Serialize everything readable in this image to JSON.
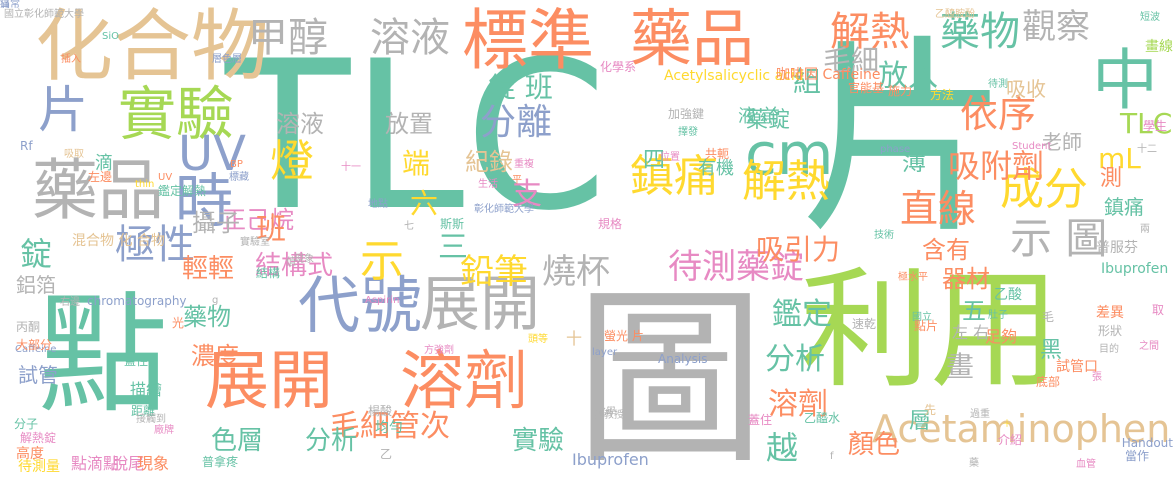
{
  "palette": {
    "green": "#66c2a5",
    "orange": "#fc8d62",
    "blue": "#8da0cb",
    "pink": "#e78ac3",
    "lime": "#a6d854",
    "yellow": "#ffd92f",
    "tan": "#e5c494",
    "gray": "#b3b3b3"
  },
  "words": [
    {
      "text": "TLC",
      "color": "green"
    },
    {
      "text": "片",
      "color": "green"
    },
    {
      "text": "圖",
      "color": "gray"
    },
    {
      "text": "點",
      "color": "green"
    },
    {
      "text": "利用",
      "color": "lime"
    },
    {
      "text": "化合物",
      "color": "tan"
    },
    {
      "text": "標準",
      "color": "orange"
    },
    {
      "text": "藥品",
      "color": "orange"
    },
    {
      "text": "實驗",
      "color": "lime"
    },
    {
      "text": "藥品",
      "color": "gray"
    },
    {
      "text": "展開",
      "color": "orange"
    },
    {
      "text": "溶劑",
      "color": "orange"
    },
    {
      "text": "代號",
      "color": "blue"
    },
    {
      "text": "展開",
      "color": "gray"
    },
    {
      "text": "cm",
      "color": "green"
    },
    {
      "text": "中",
      "color": "green"
    },
    {
      "text": "時",
      "color": "blue"
    },
    {
      "text": "片",
      "color": "blue"
    },
    {
      "text": "甲醇",
      "color": "gray"
    },
    {
      "text": "溶液",
      "color": "gray"
    },
    {
      "text": "解熱",
      "color": "orange"
    },
    {
      "text": "藥物",
      "color": "green"
    },
    {
      "text": "鎮痛",
      "color": "yellow"
    },
    {
      "text": "解熱",
      "color": "yellow"
    },
    {
      "text": "UV",
      "color": "blue"
    },
    {
      "text": "燈",
      "color": "yellow"
    },
    {
      "text": "極性",
      "color": "blue"
    },
    {
      "text": "示",
      "color": "yellow"
    },
    {
      "text": "分離",
      "color": "blue"
    },
    {
      "text": "Acetaminophen",
      "color": "tan"
    },
    {
      "text": "依序",
      "color": "orange"
    },
    {
      "text": "成分",
      "color": "yellow"
    },
    {
      "text": "直線",
      "color": "orange"
    },
    {
      "text": "示 圖",
      "color": "gray"
    },
    {
      "text": "待測藥錠",
      "color": "pink"
    },
    {
      "text": "燒杯",
      "color": "gray"
    },
    {
      "text": "鉛筆",
      "color": "yellow"
    },
    {
      "text": "觀察",
      "color": "gray"
    },
    {
      "text": "吸附劑",
      "color": "orange"
    },
    {
      "text": "TLC",
      "color": "lime"
    },
    {
      "text": "mL",
      "color": "yellow"
    },
    {
      "text": "鑑定",
      "color": "green"
    },
    {
      "text": "分析",
      "color": "green"
    },
    {
      "text": "溶劑",
      "color": "orange"
    },
    {
      "text": "毛細管次",
      "color": "orange"
    },
    {
      "text": "實驗",
      "color": "green"
    },
    {
      "text": "分析",
      "color": "green"
    },
    {
      "text": "色層",
      "color": "green"
    },
    {
      "text": "越",
      "color": "green"
    },
    {
      "text": "錠 班",
      "color": "green"
    },
    {
      "text": "組",
      "color": "green"
    },
    {
      "text": "放入",
      "color": "green"
    },
    {
      "text": "吸引力",
      "color": "orange"
    },
    {
      "text": "結構式",
      "color": "pink"
    },
    {
      "text": "輕輕",
      "color": "orange"
    },
    {
      "text": "錠",
      "color": "green"
    },
    {
      "text": "正己烷",
      "color": "pink"
    },
    {
      "text": "班",
      "color": "orange"
    },
    {
      "text": "溶液",
      "color": "gray"
    },
    {
      "text": "攝子",
      "color": "gray"
    },
    {
      "text": "放置",
      "color": "gray"
    },
    {
      "text": "端",
      "color": "yellow"
    },
    {
      "text": "六",
      "color": "yellow"
    },
    {
      "text": "紀錄",
      "color": "tan"
    },
    {
      "text": "支",
      "color": "pink"
    },
    {
      "text": "三",
      "color": "green"
    },
    {
      "text": "濃度",
      "color": "orange"
    },
    {
      "text": "藥物",
      "color": "green"
    },
    {
      "text": "老師",
      "color": "gray"
    },
    {
      "text": "吸收",
      "color": "tan"
    },
    {
      "text": "薄",
      "color": "green"
    },
    {
      "text": "含有",
      "color": "orange"
    },
    {
      "text": "器材",
      "color": "orange"
    },
    {
      "text": "畫",
      "color": "gray"
    },
    {
      "text": "五",
      "color": "green"
    },
    {
      "text": "黑",
      "color": "green"
    },
    {
      "text": "層",
      "color": "green"
    },
    {
      "text": "顏色",
      "color": "orange"
    },
    {
      "text": "藥錠",
      "color": "green"
    },
    {
      "text": "四",
      "color": "green"
    },
    {
      "text": "有機",
      "color": "green"
    },
    {
      "text": "液 前",
      "color": "green"
    },
    {
      "text": "毛細",
      "color": "gray"
    },
    {
      "text": "測",
      "color": "orange"
    },
    {
      "text": "鎮痛",
      "color": "green"
    },
    {
      "text": "鋁箔",
      "color": "gray"
    },
    {
      "text": "試管",
      "color": "blue"
    },
    {
      "text": "滴",
      "color": "green"
    },
    {
      "text": "Ibuprofen",
      "color": "blue"
    },
    {
      "text": "Acetylsalicyclic acid",
      "color": "yellow"
    },
    {
      "text": "咖啡因 Caffeine",
      "color": "orange"
    },
    {
      "text": "乙醯胺酚",
      "color": "tan"
    },
    {
      "text": "國立彰化師範大學",
      "color": "gray"
    },
    {
      "text": "鑑定解熱",
      "color": "green"
    },
    {
      "text": "Analysis",
      "color": "blue"
    },
    {
      "text": "chromatography",
      "color": "blue"
    },
    {
      "text": "Aspirin",
      "color": "pink"
    },
    {
      "text": "Student",
      "color": "pink"
    },
    {
      "text": "Handout",
      "color": "blue"
    },
    {
      "text": "phase",
      "color": "blue"
    },
    {
      "text": "layer",
      "color": "blue"
    },
    {
      "text": "thin",
      "color": "yellow"
    },
    {
      "text": "Caffeine",
      "color": "blue"
    },
    {
      "text": "Ibuprofen",
      "color": "green"
    },
    {
      "text": "普服芬",
      "color": "gray"
    },
    {
      "text": "化學系",
      "color": "pink"
    },
    {
      "text": "方法",
      "color": "yellow"
    },
    {
      "text": "施力",
      "color": "orange"
    },
    {
      "text": "待測",
      "color": "green"
    },
    {
      "text": "乙酸",
      "color": "green"
    },
    {
      "text": "乙醯水",
      "color": "green"
    },
    {
      "text": "左 右",
      "color": "gray"
    },
    {
      "text": "足夠",
      "color": "orange"
    },
    {
      "text": "試管口",
      "color": "orange"
    },
    {
      "text": "底部",
      "color": "orange"
    },
    {
      "text": "差異",
      "color": "orange"
    },
    {
      "text": "形狀",
      "color": "gray"
    },
    {
      "text": "目的",
      "color": "gray"
    },
    {
      "text": "高度",
      "color": "orange"
    },
    {
      "text": "待測量",
      "color": "yellow"
    },
    {
      "text": "點滴點",
      "color": "pink"
    },
    {
      "text": "脫尾",
      "color": "pink"
    },
    {
      "text": "現象",
      "color": "orange"
    },
    {
      "text": "普拿疼",
      "color": "green"
    },
    {
      "text": "楊酸",
      "color": "gray"
    },
    {
      "text": "均勻",
      "color": "green"
    },
    {
      "text": "描繪",
      "color": "green"
    },
    {
      "text": "距離",
      "color": "green"
    },
    {
      "text": "丙酮",
      "color": "gray"
    },
    {
      "text": "大部分",
      "color": "orange"
    },
    {
      "text": "分子",
      "color": "green"
    },
    {
      "text": "解熱錠",
      "color": "pink"
    },
    {
      "text": "混合物 化 合物",
      "color": "tan"
    },
    {
      "text": "插入",
      "color": "orange"
    },
    {
      "text": "吸取",
      "color": "tan"
    },
    {
      "text": "Rf",
      "color": "blue"
    },
    {
      "text": "UV",
      "color": "orange"
    },
    {
      "text": "標藏",
      "color": "blue"
    },
    {
      "text": "BP",
      "color": "orange"
    },
    {
      "text": "十一",
      "color": "pink"
    },
    {
      "text": "地點",
      "color": "blue"
    },
    {
      "text": "斯斯",
      "color": "green"
    },
    {
      "text": "彰化師範大學",
      "color": "blue"
    },
    {
      "text": "規格",
      "color": "pink"
    },
    {
      "text": "七",
      "color": "gray"
    },
    {
      "text": "平",
      "color": "orange"
    },
    {
      "text": "生活",
      "color": "pink"
    },
    {
      "text": "重複",
      "color": "pink"
    },
    {
      "text": "位置",
      "color": "pink"
    },
    {
      "text": "共軛",
      "color": "orange"
    },
    {
      "text": "加強鍵",
      "color": "gray"
    },
    {
      "text": "擇發",
      "color": "green"
    },
    {
      "text": "層色層",
      "color": "blue"
    },
    {
      "text": "官能基",
      "color": "orange"
    },
    {
      "text": "十二",
      "color": "gray"
    },
    {
      "text": "學生",
      "color": "pink"
    },
    {
      "text": "畫線",
      "color": "lime"
    },
    {
      "text": "短波",
      "color": "green"
    },
    {
      "text": "之間",
      "color": "pink"
    },
    {
      "text": "取",
      "color": "pink"
    },
    {
      "text": "肚子",
      "color": "green"
    },
    {
      "text": "介紹",
      "color": "pink"
    },
    {
      "text": "當作",
      "color": "blue"
    },
    {
      "text": "國立",
      "color": "green"
    },
    {
      "text": "速乾",
      "color": "gray"
    },
    {
      "text": "點片",
      "color": "orange"
    },
    {
      "text": "螢光 片",
      "color": "orange"
    },
    {
      "text": "蓋住",
      "color": "green"
    },
    {
      "text": "光",
      "color": "orange"
    },
    {
      "text": "值",
      "color": "gray"
    },
    {
      "text": "結構",
      "color": "green"
    },
    {
      "text": "現象",
      "color": "gray"
    },
    {
      "text": "毛",
      "color": "gray"
    },
    {
      "text": "乙",
      "color": "gray"
    },
    {
      "text": "先",
      "color": "tan"
    },
    {
      "text": "過重",
      "color": "gray"
    },
    {
      "text": "張",
      "color": "pink"
    },
    {
      "text": "頭等",
      "color": "yellow"
    },
    {
      "text": "化學",
      "color": "gray"
    },
    {
      "text": "蓋住",
      "color": "pink"
    },
    {
      "text": "技術",
      "color": "green"
    },
    {
      "text": "實驗室",
      "color": "gray"
    },
    {
      "text": "副教授",
      "color": "gray"
    },
    {
      "text": "SiO",
      "color": "green"
    },
    {
      "text": "右邊",
      "color": "gray"
    },
    {
      "text": "左邊",
      "color": "orange"
    },
    {
      "text": "極水平",
      "color": "orange"
    },
    {
      "text": "g",
      "color": "gray"
    },
    {
      "text": "十",
      "color": "tan"
    },
    {
      "text": "f",
      "color": "gray"
    },
    {
      "text": "＋",
      "color": "yellow"
    },
    {
      "text": "藥",
      "color": "gray"
    },
    {
      "text": "兩",
      "color": "gray"
    },
    {
      "text": "血管",
      "color": "pink"
    },
    {
      "text": "方強劑",
      "color": "pink"
    },
    {
      "text": "接觸到",
      "color": "gray"
    },
    {
      "text": "廠牌",
      "color": "pink"
    },
    {
      "text": "日常",
      "color": "blue"
    },
    {
      "text": "痛",
      "color": "blue"
    }
  ]
}
